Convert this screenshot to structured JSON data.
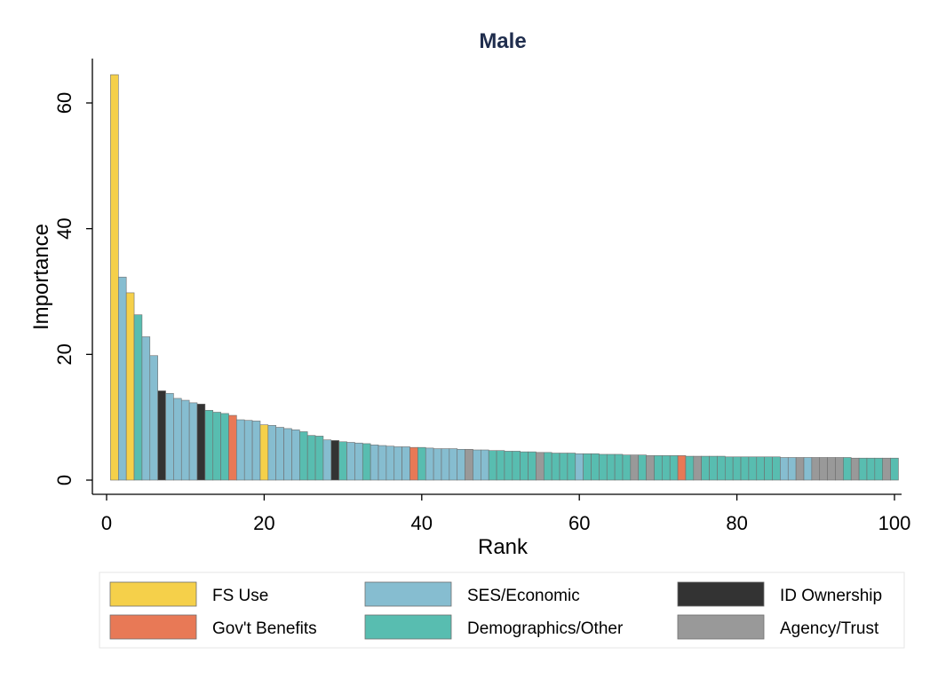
{
  "chart_data": {
    "type": "bar",
    "title": "Male",
    "xlabel": "Rank",
    "ylabel": "Importance",
    "xlim": [
      0,
      100
    ],
    "ylim": [
      0,
      65
    ],
    "xticks": [
      0,
      20,
      40,
      60,
      80,
      100
    ],
    "yticks": [
      0,
      20,
      40,
      60
    ],
    "grid": false,
    "legend_position": "bottom",
    "categories": [
      {
        "name": "FS Use",
        "color": "#f5d04a"
      },
      {
        "name": "SES/Economic",
        "color": "#86bdd0"
      },
      {
        "name": "ID Ownership",
        "color": "#333333"
      },
      {
        "name": "Gov't Benefits",
        "color": "#e87956"
      },
      {
        "name": "Demographics/Other",
        "color": "#58bdb0"
      },
      {
        "name": "Agency/Trust",
        "color": "#999999"
      }
    ],
    "x": [
      1,
      2,
      3,
      4,
      5,
      6,
      7,
      8,
      9,
      10,
      11,
      12,
      13,
      14,
      15,
      16,
      17,
      18,
      19,
      20,
      21,
      22,
      23,
      24,
      25,
      26,
      27,
      28,
      29,
      30,
      31,
      32,
      33,
      34,
      35,
      36,
      37,
      38,
      39,
      40,
      41,
      42,
      43,
      44,
      45,
      46,
      47,
      48,
      49,
      50,
      51,
      52,
      53,
      54,
      55,
      56,
      57,
      58,
      59,
      60,
      61,
      62,
      63,
      64,
      65,
      66,
      67,
      68,
      69,
      70,
      71,
      72,
      73,
      74,
      75,
      76,
      77,
      78,
      79,
      80,
      81,
      82,
      83,
      84,
      85,
      86,
      87,
      88,
      89,
      90,
      91,
      92,
      93,
      94,
      95,
      96,
      97,
      98,
      99,
      100
    ],
    "values": [
      64.5,
      32.3,
      29.8,
      26.3,
      22.8,
      19.8,
      14.2,
      13.8,
      13.0,
      12.7,
      12.3,
      12.1,
      11.1,
      10.8,
      10.6,
      10.3,
      9.6,
      9.5,
      9.4,
      8.8,
      8.7,
      8.4,
      8.2,
      8.0,
      7.7,
      7.1,
      7.0,
      6.4,
      6.3,
      6.1,
      6.0,
      5.9,
      5.8,
      5.6,
      5.5,
      5.4,
      5.3,
      5.3,
      5.2,
      5.2,
      5.1,
      5.0,
      5.0,
      5.0,
      4.9,
      4.9,
      4.8,
      4.8,
      4.7,
      4.7,
      4.6,
      4.6,
      4.5,
      4.5,
      4.4,
      4.4,
      4.3,
      4.3,
      4.3,
      4.2,
      4.2,
      4.2,
      4.1,
      4.1,
      4.1,
      4.0,
      4.0,
      4.0,
      3.9,
      3.9,
      3.9,
      3.9,
      3.9,
      3.8,
      3.8,
      3.8,
      3.8,
      3.8,
      3.7,
      3.7,
      3.7,
      3.7,
      3.7,
      3.7,
      3.7,
      3.6,
      3.6,
      3.6,
      3.6,
      3.6,
      3.6,
      3.6,
      3.6,
      3.6,
      3.5,
      3.5,
      3.5,
      3.5,
      3.5,
      3.5
    ],
    "groups": [
      "FS Use",
      "SES/Economic",
      "FS Use",
      "Demographics/Other",
      "SES/Economic",
      "SES/Economic",
      "ID Ownership",
      "SES/Economic",
      "SES/Economic",
      "SES/Economic",
      "SES/Economic",
      "ID Ownership",
      "Demographics/Other",
      "Demographics/Other",
      "Demographics/Other",
      "Gov't Benefits",
      "SES/Economic",
      "SES/Economic",
      "SES/Economic",
      "FS Use",
      "SES/Economic",
      "SES/Economic",
      "SES/Economic",
      "SES/Economic",
      "Demographics/Other",
      "Demographics/Other",
      "Demographics/Other",
      "SES/Economic",
      "ID Ownership",
      "Demographics/Other",
      "SES/Economic",
      "SES/Economic",
      "Demographics/Other",
      "SES/Economic",
      "SES/Economic",
      "SES/Economic",
      "SES/Economic",
      "SES/Economic",
      "Gov't Benefits",
      "Demographics/Other",
      "SES/Economic",
      "SES/Economic",
      "SES/Economic",
      "SES/Economic",
      "SES/Economic",
      "Agency/Trust",
      "SES/Economic",
      "SES/Economic",
      "Demographics/Other",
      "Demographics/Other",
      "Demographics/Other",
      "Demographics/Other",
      "Demographics/Other",
      "Demographics/Other",
      "Agency/Trust",
      "Demographics/Other",
      "Demographics/Other",
      "Demographics/Other",
      "Demographics/Other",
      "SES/Economic",
      "Demographics/Other",
      "Demographics/Other",
      "Demographics/Other",
      "Demographics/Other",
      "Demographics/Other",
      "Demographics/Other",
      "Agency/Trust",
      "Demographics/Other",
      "Agency/Trust",
      "Demographics/Other",
      "Demographics/Other",
      "Demographics/Other",
      "Gov't Benefits",
      "Demographics/Other",
      "Agency/Trust",
      "Demographics/Other",
      "Demographics/Other",
      "Demographics/Other",
      "Demographics/Other",
      "Demographics/Other",
      "Demographics/Other",
      "Demographics/Other",
      "Demographics/Other",
      "Demographics/Other",
      "Demographics/Other",
      "SES/Economic",
      "SES/Economic",
      "Agency/Trust",
      "SES/Economic",
      "Agency/Trust",
      "Agency/Trust",
      "Agency/Trust",
      "Agency/Trust",
      "Demographics/Other",
      "Agency/Trust",
      "Demographics/Other",
      "Demographics/Other",
      "Demographics/Other",
      "Agency/Trust",
      "Demographics/Other"
    ]
  }
}
